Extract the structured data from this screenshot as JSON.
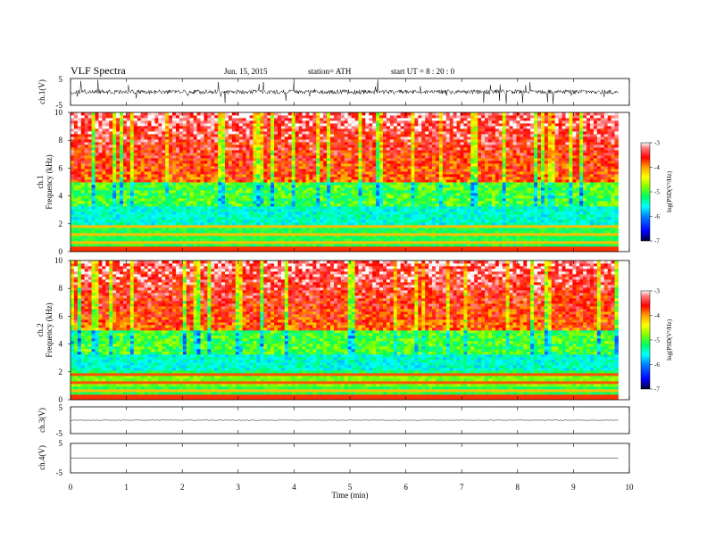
{
  "header": {
    "title": "VLF  Spectra",
    "date": "Jun. 15, 2015",
    "station": "station= ATH",
    "start_ut": "start  UT  =    8  : 20 : 0"
  },
  "panels": {
    "ch1_waveform": {
      "ylabel": "ch.1(V)",
      "yticks": [
        "5",
        "-5"
      ]
    },
    "ch1_spectrogram": {
      "ylabel_channel": "ch.1",
      "ylabel": "Frequency  (kHz)",
      "yticks": [
        "0",
        "2",
        "4",
        "6",
        "8",
        "10"
      ]
    },
    "ch2_spectrogram": {
      "ylabel_channel": "ch.2",
      "ylabel": "Frequency  (kHz)",
      "yticks": [
        "0",
        "2",
        "4",
        "6",
        "8",
        "10"
      ]
    },
    "ch3_waveform": {
      "ylabel": "ch.3(V)",
      "yticks": [
        "5",
        "-5"
      ]
    },
    "ch4_waveform": {
      "ylabel": "ch.4(V)",
      "yticks": [
        "5",
        "-5"
      ]
    }
  },
  "colorbar": {
    "label": "log(PSD(V²/Hz)",
    "ticks": [
      "-3",
      "-4",
      "-5",
      "-6",
      "-7"
    ],
    "colors": [
      "#ffffff",
      "#ff4040",
      "#ff0000",
      "#ffa000",
      "#ffff00",
      "#80ff00",
      "#00ff60",
      "#00ffff",
      "#0080ff",
      "#0000ff",
      "#000040"
    ]
  },
  "chart_data": {
    "type": "heatmap",
    "xlabel": "Time  (min)",
    "xticks": [
      "0",
      "1",
      "2",
      "3",
      "4",
      "5",
      "6",
      "7",
      "8",
      "9",
      "10"
    ],
    "xlim": [
      0,
      10
    ],
    "data_end_min": 9.8,
    "ch1_ylim": [
      -5,
      5
    ],
    "freq_ylim_khz": [
      0,
      10
    ],
    "psd_log_range": [
      -7,
      -3
    ],
    "ch3_ylim": [
      -5,
      5
    ],
    "ch4_ylim": [
      -5,
      5
    ]
  }
}
